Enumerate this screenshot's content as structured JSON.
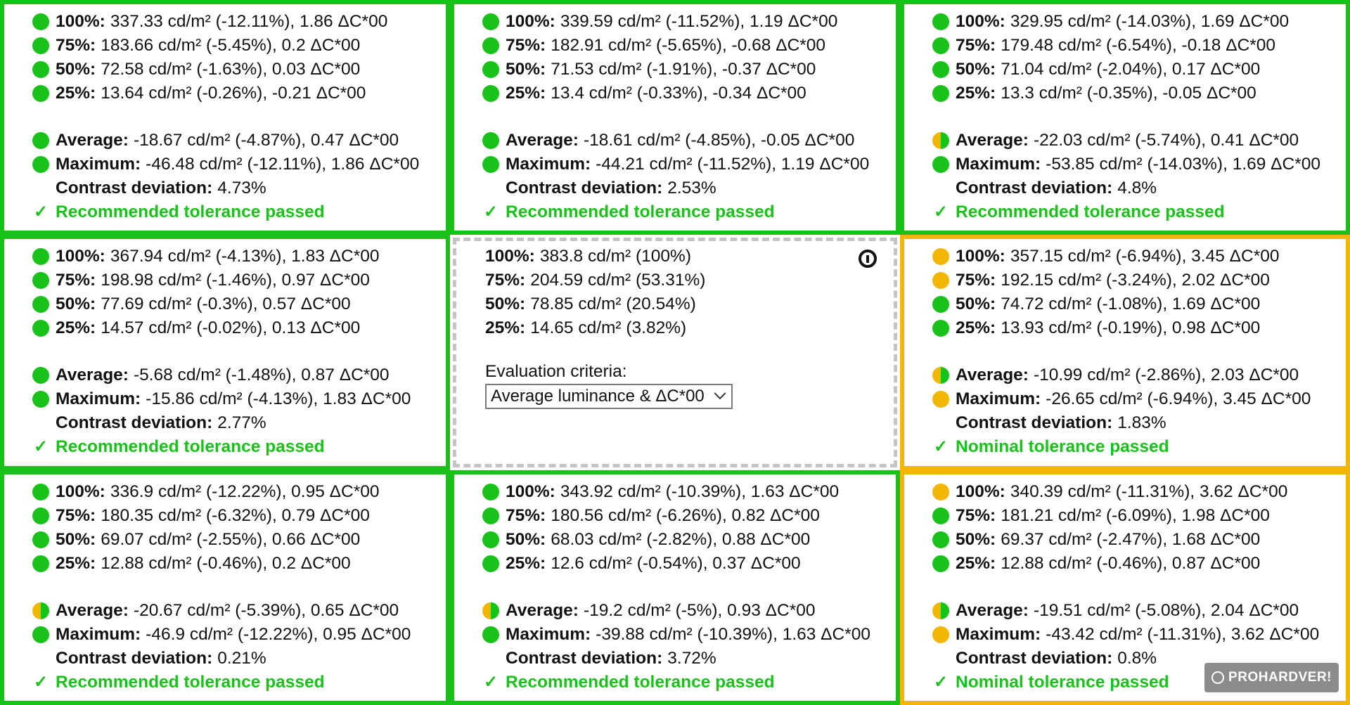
{
  "colors": {
    "pass_green": "#19c219",
    "warn_yellow": "#f2b705",
    "neutral_border": "#c4c4c4"
  },
  "cells": [
    {
      "status": "green",
      "rows": [
        {
          "dot": "green",
          "label": "100%:",
          "value": "337.33 cd/m² (-12.11%), 1.86 ΔC*00"
        },
        {
          "dot": "green",
          "label": "75%:",
          "value": "183.66 cd/m² (-5.45%), 0.2 ΔC*00"
        },
        {
          "dot": "green",
          "label": "50%:",
          "value": "72.58 cd/m² (-1.63%), 0.03 ΔC*00"
        },
        {
          "dot": "green",
          "label": "25%:",
          "value": "13.64 cd/m² (-0.26%), -0.21 ΔC*00"
        }
      ],
      "average": {
        "dot": "green",
        "label": "Average:",
        "value": "-18.67 cd/m² (-4.87%), 0.47 ΔC*00"
      },
      "maximum": {
        "dot": "green",
        "label": "Maximum:",
        "value": "-46.48 cd/m² (-12.11%), 1.86 ΔC*00"
      },
      "contrast": {
        "label": "Contrast deviation:",
        "value": "4.73%"
      },
      "result": "Recommended tolerance passed"
    },
    {
      "status": "green",
      "rows": [
        {
          "dot": "green",
          "label": "100%:",
          "value": "339.59 cd/m² (-11.52%), 1.19 ΔC*00"
        },
        {
          "dot": "green",
          "label": "75%:",
          "value": "182.91 cd/m² (-5.65%), -0.68 ΔC*00"
        },
        {
          "dot": "green",
          "label": "50%:",
          "value": "71.53 cd/m² (-1.91%), -0.37 ΔC*00"
        },
        {
          "dot": "green",
          "label": "25%:",
          "value": "13.4 cd/m² (-0.33%), -0.34 ΔC*00"
        }
      ],
      "average": {
        "dot": "green",
        "label": "Average:",
        "value": "-18.61 cd/m² (-4.85%), -0.05 ΔC*00"
      },
      "maximum": {
        "dot": "green",
        "label": "Maximum:",
        "value": "-44.21 cd/m² (-11.52%), 1.19 ΔC*00"
      },
      "contrast": {
        "label": "Contrast deviation:",
        "value": "2.53%"
      },
      "result": "Recommended tolerance passed"
    },
    {
      "status": "green",
      "rows": [
        {
          "dot": "green",
          "label": "100%:",
          "value": "329.95 cd/m² (-14.03%), 1.69 ΔC*00"
        },
        {
          "dot": "green",
          "label": "75%:",
          "value": "179.48 cd/m² (-6.54%), -0.18 ΔC*00"
        },
        {
          "dot": "green",
          "label": "50%:",
          "value": "71.04 cd/m² (-2.04%), 0.17 ΔC*00"
        },
        {
          "dot": "green",
          "label": "25%:",
          "value": "13.3 cd/m² (-0.35%), -0.05 ΔC*00"
        }
      ],
      "average": {
        "dot": "half",
        "label": "Average:",
        "value": "-22.03 cd/m² (-5.74%), 0.41 ΔC*00"
      },
      "maximum": {
        "dot": "green",
        "label": "Maximum:",
        "value": "-53.85 cd/m² (-14.03%), 1.69 ΔC*00"
      },
      "contrast": {
        "label": "Contrast deviation:",
        "value": "4.8%"
      },
      "result": "Recommended tolerance passed"
    },
    {
      "status": "green",
      "rows": [
        {
          "dot": "green",
          "label": "100%:",
          "value": "367.94 cd/m² (-4.13%), 1.83 ΔC*00"
        },
        {
          "dot": "green",
          "label": "75%:",
          "value": "198.98 cd/m² (-1.46%), 0.97 ΔC*00"
        },
        {
          "dot": "green",
          "label": "50%:",
          "value": "77.69 cd/m² (-0.3%), 0.57 ΔC*00"
        },
        {
          "dot": "green",
          "label": "25%:",
          "value": "14.57 cd/m² (-0.02%), 0.13 ΔC*00"
        }
      ],
      "average": {
        "dot": "green",
        "label": "Average:",
        "value": "-5.68 cd/m² (-1.48%), 0.87 ΔC*00"
      },
      "maximum": {
        "dot": "green",
        "label": "Maximum:",
        "value": "-15.86 cd/m² (-4.13%), 1.83 ΔC*00"
      },
      "contrast": {
        "label": "Contrast deviation:",
        "value": "2.77%"
      },
      "result": "Recommended tolerance passed"
    },
    {
      "status": "reference",
      "rows": [
        {
          "label": "100%:",
          "value": "383.8 cd/m² (100%)"
        },
        {
          "label": "75%:",
          "value": "204.59 cd/m² (53.31%)"
        },
        {
          "label": "50%:",
          "value": "78.85 cd/m² (20.54%)"
        },
        {
          "label": "25%:",
          "value": "14.65 cd/m² (3.82%)"
        }
      ],
      "criteria_label": "Evaluation criteria:",
      "criteria_value": "Average luminance & ΔC*00",
      "icon": "info-icon"
    },
    {
      "status": "yellow",
      "rows": [
        {
          "dot": "yellow",
          "label": "100%:",
          "value": "357.15 cd/m² (-6.94%), 3.45 ΔC*00"
        },
        {
          "dot": "yellow",
          "label": "75%:",
          "value": "192.15 cd/m² (-3.24%), 2.02 ΔC*00"
        },
        {
          "dot": "green",
          "label": "50%:",
          "value": "74.72 cd/m² (-1.08%), 1.69 ΔC*00"
        },
        {
          "dot": "green",
          "label": "25%:",
          "value": "13.93 cd/m² (-0.19%), 0.98 ΔC*00"
        }
      ],
      "average": {
        "dot": "half",
        "label": "Average:",
        "value": "-10.99 cd/m² (-2.86%), 2.03 ΔC*00"
      },
      "maximum": {
        "dot": "yellow",
        "label": "Maximum:",
        "value": "-26.65 cd/m² (-6.94%), 3.45 ΔC*00"
      },
      "contrast": {
        "label": "Contrast deviation:",
        "value": "1.83%"
      },
      "result": "Nominal tolerance passed"
    },
    {
      "status": "green",
      "rows": [
        {
          "dot": "green",
          "label": "100%:",
          "value": "336.9 cd/m² (-12.22%), 0.95 ΔC*00"
        },
        {
          "dot": "green",
          "label": "75%:",
          "value": "180.35 cd/m² (-6.32%), 0.79 ΔC*00"
        },
        {
          "dot": "green",
          "label": "50%:",
          "value": "69.07 cd/m² (-2.55%), 0.66 ΔC*00"
        },
        {
          "dot": "green",
          "label": "25%:",
          "value": "12.88 cd/m² (-0.46%), 0.2 ΔC*00"
        }
      ],
      "average": {
        "dot": "half",
        "label": "Average:",
        "value": "-20.67 cd/m² (-5.39%), 0.65 ΔC*00"
      },
      "maximum": {
        "dot": "green",
        "label": "Maximum:",
        "value": "-46.9 cd/m² (-12.22%), 0.95 ΔC*00"
      },
      "contrast": {
        "label": "Contrast deviation:",
        "value": "0.21%"
      },
      "result": "Recommended tolerance passed"
    },
    {
      "status": "green",
      "rows": [
        {
          "dot": "green",
          "label": "100%:",
          "value": "343.92 cd/m² (-10.39%), 1.63 ΔC*00"
        },
        {
          "dot": "green",
          "label": "75%:",
          "value": "180.56 cd/m² (-6.26%), 0.82 ΔC*00"
        },
        {
          "dot": "green",
          "label": "50%:",
          "value": "68.03 cd/m² (-2.82%), 0.88 ΔC*00"
        },
        {
          "dot": "green",
          "label": "25%:",
          "value": "12.6 cd/m² (-0.54%), 0.37 ΔC*00"
        }
      ],
      "average": {
        "dot": "half",
        "label": "Average:",
        "value": "-19.2 cd/m² (-5%), 0.93 ΔC*00"
      },
      "maximum": {
        "dot": "green",
        "label": "Maximum:",
        "value": "-39.88 cd/m² (-10.39%), 1.63 ΔC*00"
      },
      "contrast": {
        "label": "Contrast deviation:",
        "value": "3.72%"
      },
      "result": "Recommended tolerance passed"
    },
    {
      "status": "yellow",
      "rows": [
        {
          "dot": "yellow",
          "label": "100%:",
          "value": "340.39 cd/m² (-11.31%), 3.62 ΔC*00"
        },
        {
          "dot": "green",
          "label": "75%:",
          "value": "181.21 cd/m² (-6.09%), 1.98 ΔC*00"
        },
        {
          "dot": "green",
          "label": "50%:",
          "value": "69.37 cd/m² (-2.47%), 1.68 ΔC*00"
        },
        {
          "dot": "green",
          "label": "25%:",
          "value": "12.88 cd/m² (-0.46%), 0.87 ΔC*00"
        }
      ],
      "average": {
        "dot": "half",
        "label": "Average:",
        "value": "-19.51 cd/m² (-5.08%), 2.04 ΔC*00"
      },
      "maximum": {
        "dot": "yellow",
        "label": "Maximum:",
        "value": "-43.42 cd/m² (-11.31%), 3.62 ΔC*00"
      },
      "contrast": {
        "label": "Contrast deviation:",
        "value": "0.8%"
      },
      "result": "Nominal tolerance passed"
    }
  ],
  "watermark": "PROHARDVER!"
}
